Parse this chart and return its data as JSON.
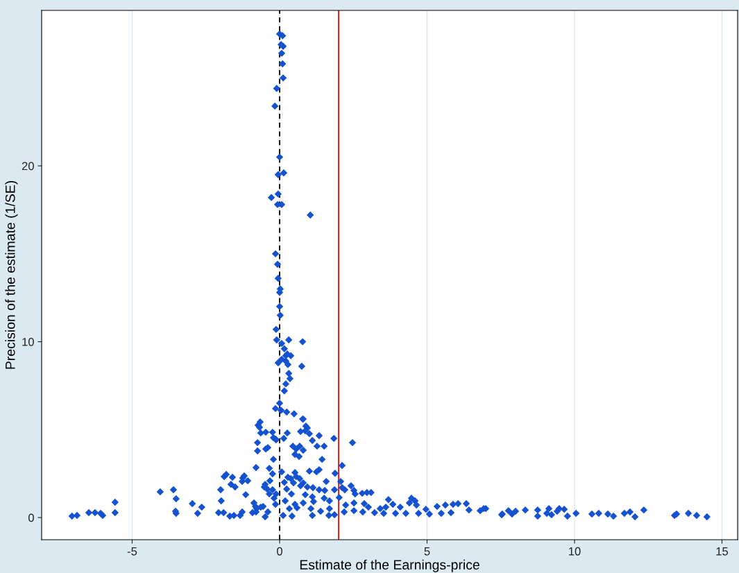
{
  "chart_data": {
    "type": "scatter",
    "xlabel": "Estimate of the Earnings-price",
    "ylabel": "Precision of the estimate (1/SE)",
    "xlim": [
      -8.07,
      15.53
    ],
    "ylim": [
      -1.26,
      28.84
    ],
    "xticks": [
      -5,
      0,
      5,
      10,
      15
    ],
    "yticks": [
      0,
      10,
      20
    ],
    "grid": "x",
    "marker": "diamond",
    "ref_lines": [
      {
        "axis": "x",
        "value": 0,
        "color": "#000000",
        "line_style": "dashed"
      },
      {
        "axis": "x",
        "value": 2,
        "color": "#ff0000",
        "line_style": "solid"
      }
    ],
    "series": [
      {
        "color": "#1452d0",
        "x": [
          0.0,
          0.1,
          0.05,
          0.12,
          0.07,
          0.1,
          0.12,
          -0.1,
          -0.16,
          0,
          -0.05,
          0.14,
          -0.05,
          -0.28,
          -0.07,
          0.07,
          1.04,
          -0.14,
          -0.07,
          -0.05,
          0.02,
          0,
          0,
          0.02,
          -0.12,
          -0.1,
          0.31,
          0.78,
          0.07,
          0.16,
          0.26,
          0.21,
          0.38,
          0.21,
          -0.05,
          0.07,
          0.28,
          0.75,
          0.31,
          0.35,
          0.21,
          0.16,
          0,
          -0.14,
          0.05,
          0.24,
          0.49,
          0.78,
          -7.04,
          -6.87,
          -6.47,
          -6.26,
          -6.07,
          -6.0,
          -5.58,
          -5.58,
          -4.05,
          -3.6,
          -3.51,
          -3.53,
          -3.51,
          -2.96,
          -2.64,
          -2.78,
          -2.07,
          -1.9,
          -1.69,
          -1.55,
          -1.34,
          -1.98,
          -2.0,
          -1.88,
          -1.81,
          -1.6,
          -1.65,
          -1.51,
          -1.27,
          -1.25,
          -1.2,
          -1.08,
          -1.15,
          -0.92,
          -0.8,
          -0.49,
          -0.87,
          -0.82,
          -0.78,
          -1.27,
          -0.64,
          -0.8,
          -0.35,
          -0.75,
          -0.75,
          -0.47,
          -0.4,
          -0.21,
          -0.66,
          -0.73,
          -0.68,
          -0.64,
          -0.47,
          -0.24,
          -0.21,
          -0.14,
          -0.12,
          -0.33,
          -0.49,
          -0.42,
          -0.35,
          -0.24,
          -0.19,
          -0.14,
          -0.56,
          -0.52,
          -0.4,
          -0.12,
          -0.24,
          0.8,
          0.89,
          0.94,
          0.26,
          0.71,
          0.87,
          1.01,
          1.34,
          1.84,
          2.47,
          0.14,
          1.11,
          1.27,
          1.51,
          0.45,
          0.56,
          0.68,
          0.8,
          0.52,
          0.66,
          1.44,
          2.12,
          0.07,
          0.28,
          0.52,
          0.56,
          1.01,
          1.25,
          1.34,
          1.88,
          0.38,
          0.47,
          0.68,
          0.8,
          1.58,
          2.07,
          0.16,
          0.71,
          0.94,
          1.13,
          1.34,
          1.53,
          1.86,
          2.12,
          2.21,
          2.42,
          2.52,
          2.56,
          2.8,
          2.96,
          3.1,
          0.24,
          0.4,
          0.87,
          1.11,
          1.51,
          2.02,
          0.19,
          0.52,
          0.8,
          1.15,
          1.69,
          2.24,
          2.52,
          2.87,
          3.01,
          3.41,
          3.6,
          3.69,
          3.84,
          4.09,
          4.4,
          4.47,
          4.59,
          4.64,
          4.96,
          5.34,
          5.62,
          5.88,
          6.05,
          6.33,
          6.42,
          6.8,
          6.92,
          7.53,
          0.33,
          0.59,
          1.06,
          1.39,
          1.69,
          1.86,
          2.19,
          2.52,
          2.82,
          3.22,
          3.53,
          3.93,
          4.28,
          4.71,
          5.08,
          5.48,
          5.81,
          0.12,
          0.42,
          1.11,
          1.67,
          6.99,
          7.55,
          7.76,
          7.88,
          8.0,
          8.33,
          8.75,
          8.75,
          9.06,
          9.13,
          9.22,
          9.41,
          9.48,
          9.65,
          9.76,
          10.05,
          10.59,
          10.82,
          11.13,
          11.32,
          11.69,
          11.88,
          12.05,
          12.35,
          13.39,
          13.46,
          13.86,
          14.14,
          14.49
        ],
        "values": [
          27.5,
          27.4,
          26.9,
          26.8,
          26.4,
          25.8,
          25.0,
          24.4,
          23.4,
          20.5,
          19.5,
          19.6,
          18.4,
          18.2,
          17.8,
          17.8,
          17.2,
          15.0,
          14.4,
          13.6,
          13.0,
          12.8,
          12.0,
          11.5,
          10.7,
          10.1,
          10.1,
          10.0,
          9.9,
          9.6,
          9.3,
          9.2,
          9.2,
          8.9,
          8.8,
          9.0,
          8.7,
          8.6,
          8.2,
          7.9,
          7.6,
          7.2,
          6.5,
          6.2,
          6.1,
          6.0,
          5.9,
          5.6,
          0.08,
          0.12,
          0.28,
          0.28,
          0.24,
          0.12,
          0.87,
          0.28,
          1.46,
          1.58,
          1.07,
          0.36,
          0.24,
          0.79,
          0.59,
          0.24,
          0.28,
          0.28,
          0.08,
          0.12,
          0.12,
          0.95,
          1.58,
          2.33,
          2.45,
          2.29,
          1.89,
          1.74,
          2.05,
          2.25,
          2.37,
          2.09,
          1.3,
          0.28,
          0.32,
          0.04,
          0.83,
          0.63,
          0.51,
          0.32,
          0.59,
          2.84,
          2.8,
          3.79,
          4.26,
          3.9,
          3.98,
          3.31,
          5.44,
          5.25,
          5.13,
          4.81,
          4.85,
          4.85,
          4.54,
          4.46,
          4.42,
          2.09,
          1.89,
          1.62,
          1.34,
          1.58,
          1.1,
          0.75,
          0.63,
          1.74,
          0.32,
          1.34,
          2.49,
          5.6,
          5.2,
          5.09,
          4.81,
          4.89,
          4.93,
          4.77,
          4.66,
          4.5,
          4.26,
          4.5,
          4.38,
          4.06,
          4.06,
          4.06,
          3.9,
          4.06,
          3.83,
          3.59,
          3.47,
          3.31,
          2.96,
          2.6,
          2.29,
          2.56,
          2.33,
          2.64,
          2.6,
          2.72,
          2.52,
          2.21,
          1.97,
          2.21,
          1.97,
          2.05,
          2.05,
          2.0,
          1.81,
          1.74,
          1.7,
          1.58,
          1.54,
          1.58,
          1.7,
          1.58,
          1.81,
          1.54,
          1.34,
          1.38,
          1.42,
          1.42,
          1.62,
          1.34,
          1.3,
          1.18,
          1.1,
          1.14,
          0.95,
          0.75,
          0.83,
          0.91,
          0.95,
          0.71,
          0.83,
          0.79,
          0.59,
          0.51,
          0.59,
          1.02,
          0.75,
          0.59,
          0.83,
          1.1,
          0.95,
          0.71,
          0.47,
          0.63,
          0.71,
          0.75,
          0.79,
          0.79,
          0.43,
          0.39,
          0.51,
          0.16,
          0.51,
          0.55,
          0.51,
          0.36,
          0.51,
          0.16,
          0.32,
          0.39,
          0.32,
          0.28,
          0.24,
          0.24,
          0.24,
          0.24,
          0.2,
          0.24,
          0.28,
          0.12,
          0.08,
          0.12,
          0.12,
          0.51,
          0.2,
          0.39,
          0.2,
          0.36,
          0.43,
          0.43,
          0.08,
          0.24,
          0.51,
          0.16,
          0.36,
          0.51,
          0.47,
          0.08,
          0.24,
          0.2,
          0.24,
          0.2,
          0.08,
          0.24,
          0.32,
          0.04,
          0.43,
          0.12,
          0.2,
          0.24,
          0.12,
          0.04
        ]
      }
    ]
  }
}
